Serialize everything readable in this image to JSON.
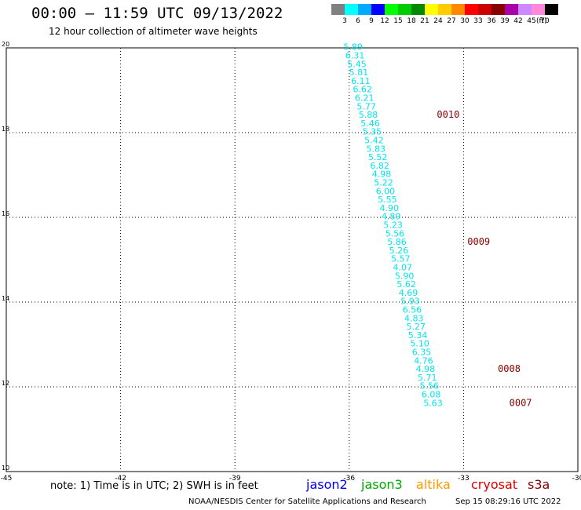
{
  "header": {
    "title": "00:00 – 11:59 UTC 09/13/2022",
    "subtitle": "12 hour collection of altimeter wave heights"
  },
  "colorbar": {
    "labels": [
      "3",
      "6",
      "9",
      "12",
      "15",
      "18",
      "21",
      "24",
      "27",
      "30",
      "33",
      "36",
      "39",
      "42",
      "45",
      "70"
    ],
    "colors": [
      "#808080",
      "#00ffff",
      "#00aaff",
      "#0000ff",
      "#00ff00",
      "#00cc00",
      "#008800",
      "#ffff00",
      "#ffcc00",
      "#ff8800",
      "#ff0000",
      "#cc0000",
      "#880000",
      "#aa00aa",
      "#cc88ff",
      "#ff88dd",
      "#000000"
    ],
    "unit": "(ft)"
  },
  "chart_data": {
    "type": "scatter",
    "xlim": [
      -45,
      -30
    ],
    "ylim": [
      10,
      20
    ],
    "x_ticks": [
      "-45",
      "-42",
      "-39",
      "-36",
      "-33",
      "-30"
    ],
    "y_ticks": [
      "20",
      "18",
      "16",
      "14",
      "12",
      "10"
    ],
    "grid": true,
    "swh_color": "#00e5ee",
    "time_color": "#880000",
    "points": [
      {
        "lon": -35.9,
        "lat": 19.95,
        "swh": "5.89"
      },
      {
        "lon": -35.85,
        "lat": 19.75,
        "swh": "6.31"
      },
      {
        "lon": -35.8,
        "lat": 19.55,
        "swh": "5.45"
      },
      {
        "lon": -35.75,
        "lat": 19.35,
        "swh": "5.81"
      },
      {
        "lon": -35.7,
        "lat": 19.15,
        "swh": "6.11"
      },
      {
        "lon": -35.65,
        "lat": 18.95,
        "swh": "6.62"
      },
      {
        "lon": -35.6,
        "lat": 18.75,
        "swh": "6.21"
      },
      {
        "lon": -35.55,
        "lat": 18.55,
        "swh": "5.77"
      },
      {
        "lon": -35.5,
        "lat": 18.35,
        "swh": "5.88"
      },
      {
        "lon": -35.45,
        "lat": 18.15,
        "swh": "5.46"
      },
      {
        "lon": -35.4,
        "lat": 17.95,
        "swh": "5.35"
      },
      {
        "lon": -35.35,
        "lat": 17.75,
        "swh": "5.42"
      },
      {
        "lon": -35.3,
        "lat": 17.55,
        "swh": "5.83"
      },
      {
        "lon": -35.25,
        "lat": 17.35,
        "swh": "5.52"
      },
      {
        "lon": -35.2,
        "lat": 17.15,
        "swh": "6.82"
      },
      {
        "lon": -35.15,
        "lat": 16.95,
        "swh": "4.98"
      },
      {
        "lon": -35.1,
        "lat": 16.75,
        "swh": "5.22"
      },
      {
        "lon": -35.05,
        "lat": 16.55,
        "swh": "6.00"
      },
      {
        "lon": -35.0,
        "lat": 16.35,
        "swh": "5.55"
      },
      {
        "lon": -34.95,
        "lat": 16.15,
        "swh": "4.90"
      },
      {
        "lon": -34.9,
        "lat": 15.95,
        "swh": "4.89"
      },
      {
        "lon": -34.85,
        "lat": 15.75,
        "swh": "5.23"
      },
      {
        "lon": -34.8,
        "lat": 15.55,
        "swh": "5.56"
      },
      {
        "lon": -34.75,
        "lat": 15.35,
        "swh": "5.86"
      },
      {
        "lon": -34.7,
        "lat": 15.15,
        "swh": "5.26"
      },
      {
        "lon": -34.65,
        "lat": 14.95,
        "swh": "5.57"
      },
      {
        "lon": -34.6,
        "lat": 14.75,
        "swh": "4.07"
      },
      {
        "lon": -34.55,
        "lat": 14.55,
        "swh": "5.90"
      },
      {
        "lon": -34.5,
        "lat": 14.35,
        "swh": "5.62"
      },
      {
        "lon": -34.45,
        "lat": 14.15,
        "swh": "4.69"
      },
      {
        "lon": -34.4,
        "lat": 13.95,
        "swh": "5.93"
      },
      {
        "lon": -34.35,
        "lat": 13.75,
        "swh": "6.56"
      },
      {
        "lon": -34.3,
        "lat": 13.55,
        "swh": "4.83"
      },
      {
        "lon": -34.25,
        "lat": 13.35,
        "swh": "5.27"
      },
      {
        "lon": -34.2,
        "lat": 13.15,
        "swh": "5.34"
      },
      {
        "lon": -34.15,
        "lat": 12.95,
        "swh": "5.10"
      },
      {
        "lon": -34.1,
        "lat": 12.75,
        "swh": "6.35"
      },
      {
        "lon": -34.05,
        "lat": 12.55,
        "swh": "4.76"
      },
      {
        "lon": -34.0,
        "lat": 12.35,
        "swh": "4.98"
      },
      {
        "lon": -33.95,
        "lat": 12.15,
        "swh": "5.71"
      },
      {
        "lon": -33.9,
        "lat": 11.95,
        "swh": "5.56"
      },
      {
        "lon": -33.85,
        "lat": 11.75,
        "swh": "6.08"
      },
      {
        "lon": -33.8,
        "lat": 11.55,
        "swh": "5.63"
      }
    ],
    "time_labels": [
      {
        "lon": -33.7,
        "lat": 18.35,
        "text": "0010"
      },
      {
        "lon": -32.9,
        "lat": 15.35,
        "text": "0009"
      },
      {
        "lon": -32.1,
        "lat": 12.35,
        "text": "0008"
      },
      {
        "lon": -31.8,
        "lat": 11.55,
        "text": "0007"
      }
    ]
  },
  "footer": {
    "note": "note:  1) Time is in UTC;  2) SWH is in feet",
    "satellites": [
      {
        "name": "jason2",
        "color": "#0000ee"
      },
      {
        "name": "jason3",
        "color": "#00aa00"
      },
      {
        "name": "altika",
        "color": "#ff9900"
      },
      {
        "name": "cryosat",
        "color": "#dd0000"
      },
      {
        "name": "s3a",
        "color": "#880000"
      }
    ],
    "credit": "NOAA/NESDIS Center for Satellite Applications and Research",
    "timestamp": "Sep 15 08:29:16 UTC 2022"
  }
}
